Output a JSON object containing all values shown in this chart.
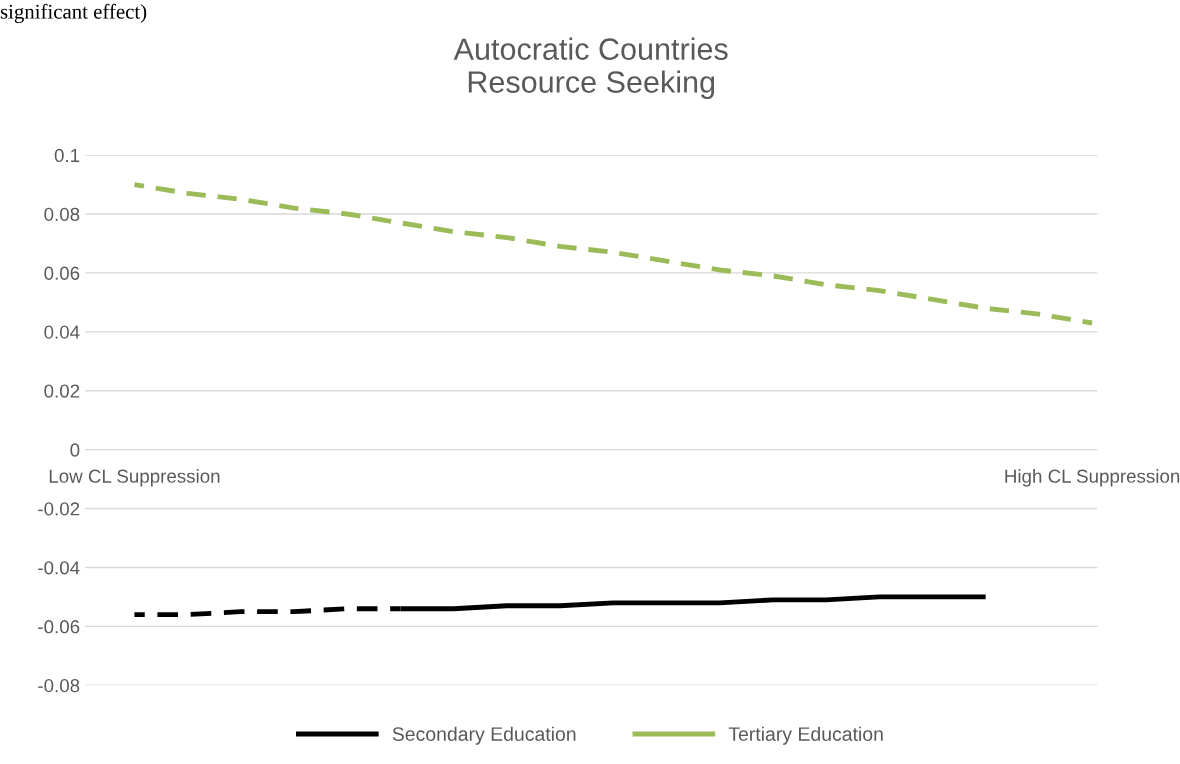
{
  "chart_data": {
    "type": "line",
    "title": "Autocratic Countries\nResource Seeking",
    "categories": [
      "Low CL Suppression",
      null,
      null,
      null,
      null,
      null,
      null,
      null,
      null,
      null,
      null,
      null,
      null,
      null,
      null,
      null,
      null,
      null,
      "High CL Suppression"
    ],
    "series": [
      {
        "color": "#000000",
        "line_style": "dashed",
        "values": [
          -0.056,
          -0.056,
          -0.055,
          -0.055,
          -0.054,
          -0.054,
          null,
          null,
          null,
          null,
          null,
          null,
          null,
          null,
          null,
          null,
          null,
          null,
          null
        ]
      },
      {
        "name": "Secondary Education",
        "color": "#000000",
        "line_style": "solid",
        "values": [
          null,
          null,
          null,
          null,
          null,
          -0.054,
          -0.054,
          -0.053,
          -0.053,
          -0.052,
          -0.052,
          -0.052,
          -0.051,
          -0.051,
          -0.05,
          -0.05,
          -0.05,
          null,
          null
        ]
      },
      {
        "name": "Tertiary Education",
        "color": "#9bbb59",
        "line_style": "dashed",
        "values": [
          0.09,
          0.087,
          0.085,
          0.082,
          0.08,
          0.077,
          0.074,
          0.072,
          0.069,
          0.067,
          0.064,
          0.061,
          0.059,
          0.056,
          0.054,
          0.051,
          0.048,
          0.046,
          0.043
        ]
      }
    ],
    "ylim": [
      -0.08,
      0.1
    ],
    "yticks": [
      -0.08,
      -0.06,
      -0.04,
      -0.02,
      0,
      0.02,
      0.04,
      0.06,
      0.08,
      0.1
    ],
    "grid": "y",
    "legend": "bottom",
    "marker": "none",
    "annotations": [
      "significant effect)"
    ]
  }
}
